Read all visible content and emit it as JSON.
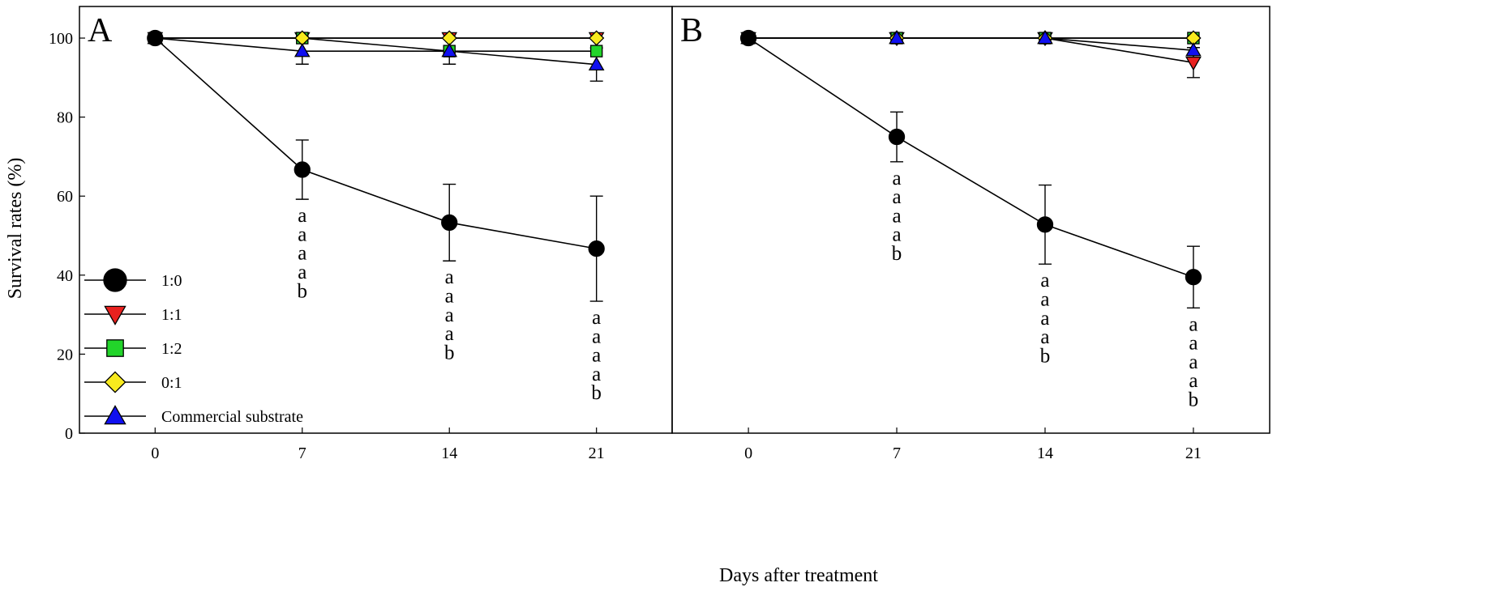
{
  "chart_data": {
    "type": "line",
    "xlabel": "Days after treatment",
    "ylabel": "Survival rates (%)",
    "ylim": [
      0,
      108
    ],
    "yticks": [
      0,
      20,
      40,
      60,
      80,
      100
    ],
    "xticks": [
      0,
      7,
      14,
      21
    ],
    "xlim": [
      -3.6,
      24.6
    ],
    "legend_position": "bottom-left of panel A",
    "legend": [
      "1:0",
      "1:1",
      "1:2",
      "0:1",
      "Commercial substrate"
    ],
    "colors": {
      "1:0": "#000000",
      "1:1": "#e8211f",
      "1:2": "#22d42a",
      "0:1": "#f8ea1e",
      "Commercial substrate": "#1010f0"
    },
    "marker_shapes": {
      "1:0": "circle",
      "1:1": "triangle-down",
      "1:2": "square",
      "0:1": "diamond",
      "Commercial substrate": "triangle-up"
    },
    "panels": [
      {
        "label": "A",
        "series": [
          {
            "name": "1:1",
            "x": [
              0,
              7,
              14,
              21
            ],
            "values": [
              100,
              100,
              100,
              100
            ],
            "errors": [
              0,
              0,
              0,
              0
            ]
          },
          {
            "name": "1:2",
            "x": [
              0,
              7,
              14,
              21
            ],
            "values": [
              100,
              100,
              96.7,
              96.7
            ],
            "errors": [
              0,
              0,
              0,
              0
            ]
          },
          {
            "name": "0:1",
            "x": [
              0,
              7,
              14,
              21
            ],
            "values": [
              100,
              100,
              100,
              100
            ],
            "errors": [
              0,
              0,
              0,
              0
            ]
          },
          {
            "name": "Commercial substrate",
            "x": [
              0,
              7,
              14,
              21
            ],
            "values": [
              100,
              96.7,
              96.7,
              93.3
            ],
            "errors": [
              0,
              3.3,
              3.3,
              4.2
            ]
          },
          {
            "name": "1:0",
            "x": [
              0,
              7,
              14,
              21
            ],
            "values": [
              100,
              66.7,
              53.3,
              46.7
            ],
            "errors": [
              0,
              7.5,
              9.7,
              13.3
            ]
          }
        ],
        "annotations": [
          {
            "x": 7,
            "text": [
              "a",
              "a",
              "a",
              "a",
              "b"
            ]
          },
          {
            "x": 14,
            "text": [
              "a",
              "a",
              "a",
              "a",
              "b"
            ]
          },
          {
            "x": 21,
            "text": [
              "a",
              "a",
              "a",
              "a",
              "b"
            ]
          }
        ]
      },
      {
        "label": "B",
        "series": [
          {
            "name": "1:1",
            "x": [
              0,
              7,
              14,
              21
            ],
            "values": [
              100,
              100,
              100,
              93.8
            ],
            "errors": [
              0,
              0,
              0,
              3.8
            ]
          },
          {
            "name": "1:2",
            "x": [
              0,
              7,
              14,
              21
            ],
            "values": [
              100,
              100,
              100,
              100
            ],
            "errors": [
              0,
              0,
              0,
              0
            ]
          },
          {
            "name": "0:1",
            "x": [
              0,
              7,
              14,
              21
            ],
            "values": [
              100,
              100,
              100,
              100
            ],
            "errors": [
              0,
              0,
              0,
              0
            ]
          },
          {
            "name": "Commercial substrate",
            "x": [
              0,
              7,
              14,
              21
            ],
            "values": [
              100,
              100,
              100,
              96.9
            ],
            "errors": [
              0,
              0,
              0,
              0
            ]
          },
          {
            "name": "1:0",
            "x": [
              0,
              7,
              14,
              21
            ],
            "values": [
              100,
              75,
              52.8,
              39.5
            ],
            "errors": [
              0,
              6.3,
              10,
              7.8
            ]
          }
        ],
        "annotations": [
          {
            "x": 7,
            "text": [
              "a",
              "a",
              "a",
              "a",
              "b"
            ]
          },
          {
            "x": 14,
            "text": [
              "a",
              "a",
              "a",
              "a",
              "b"
            ]
          },
          {
            "x": 21,
            "text": [
              "a",
              "a",
              "a",
              "a",
              "b"
            ]
          }
        ]
      }
    ]
  }
}
